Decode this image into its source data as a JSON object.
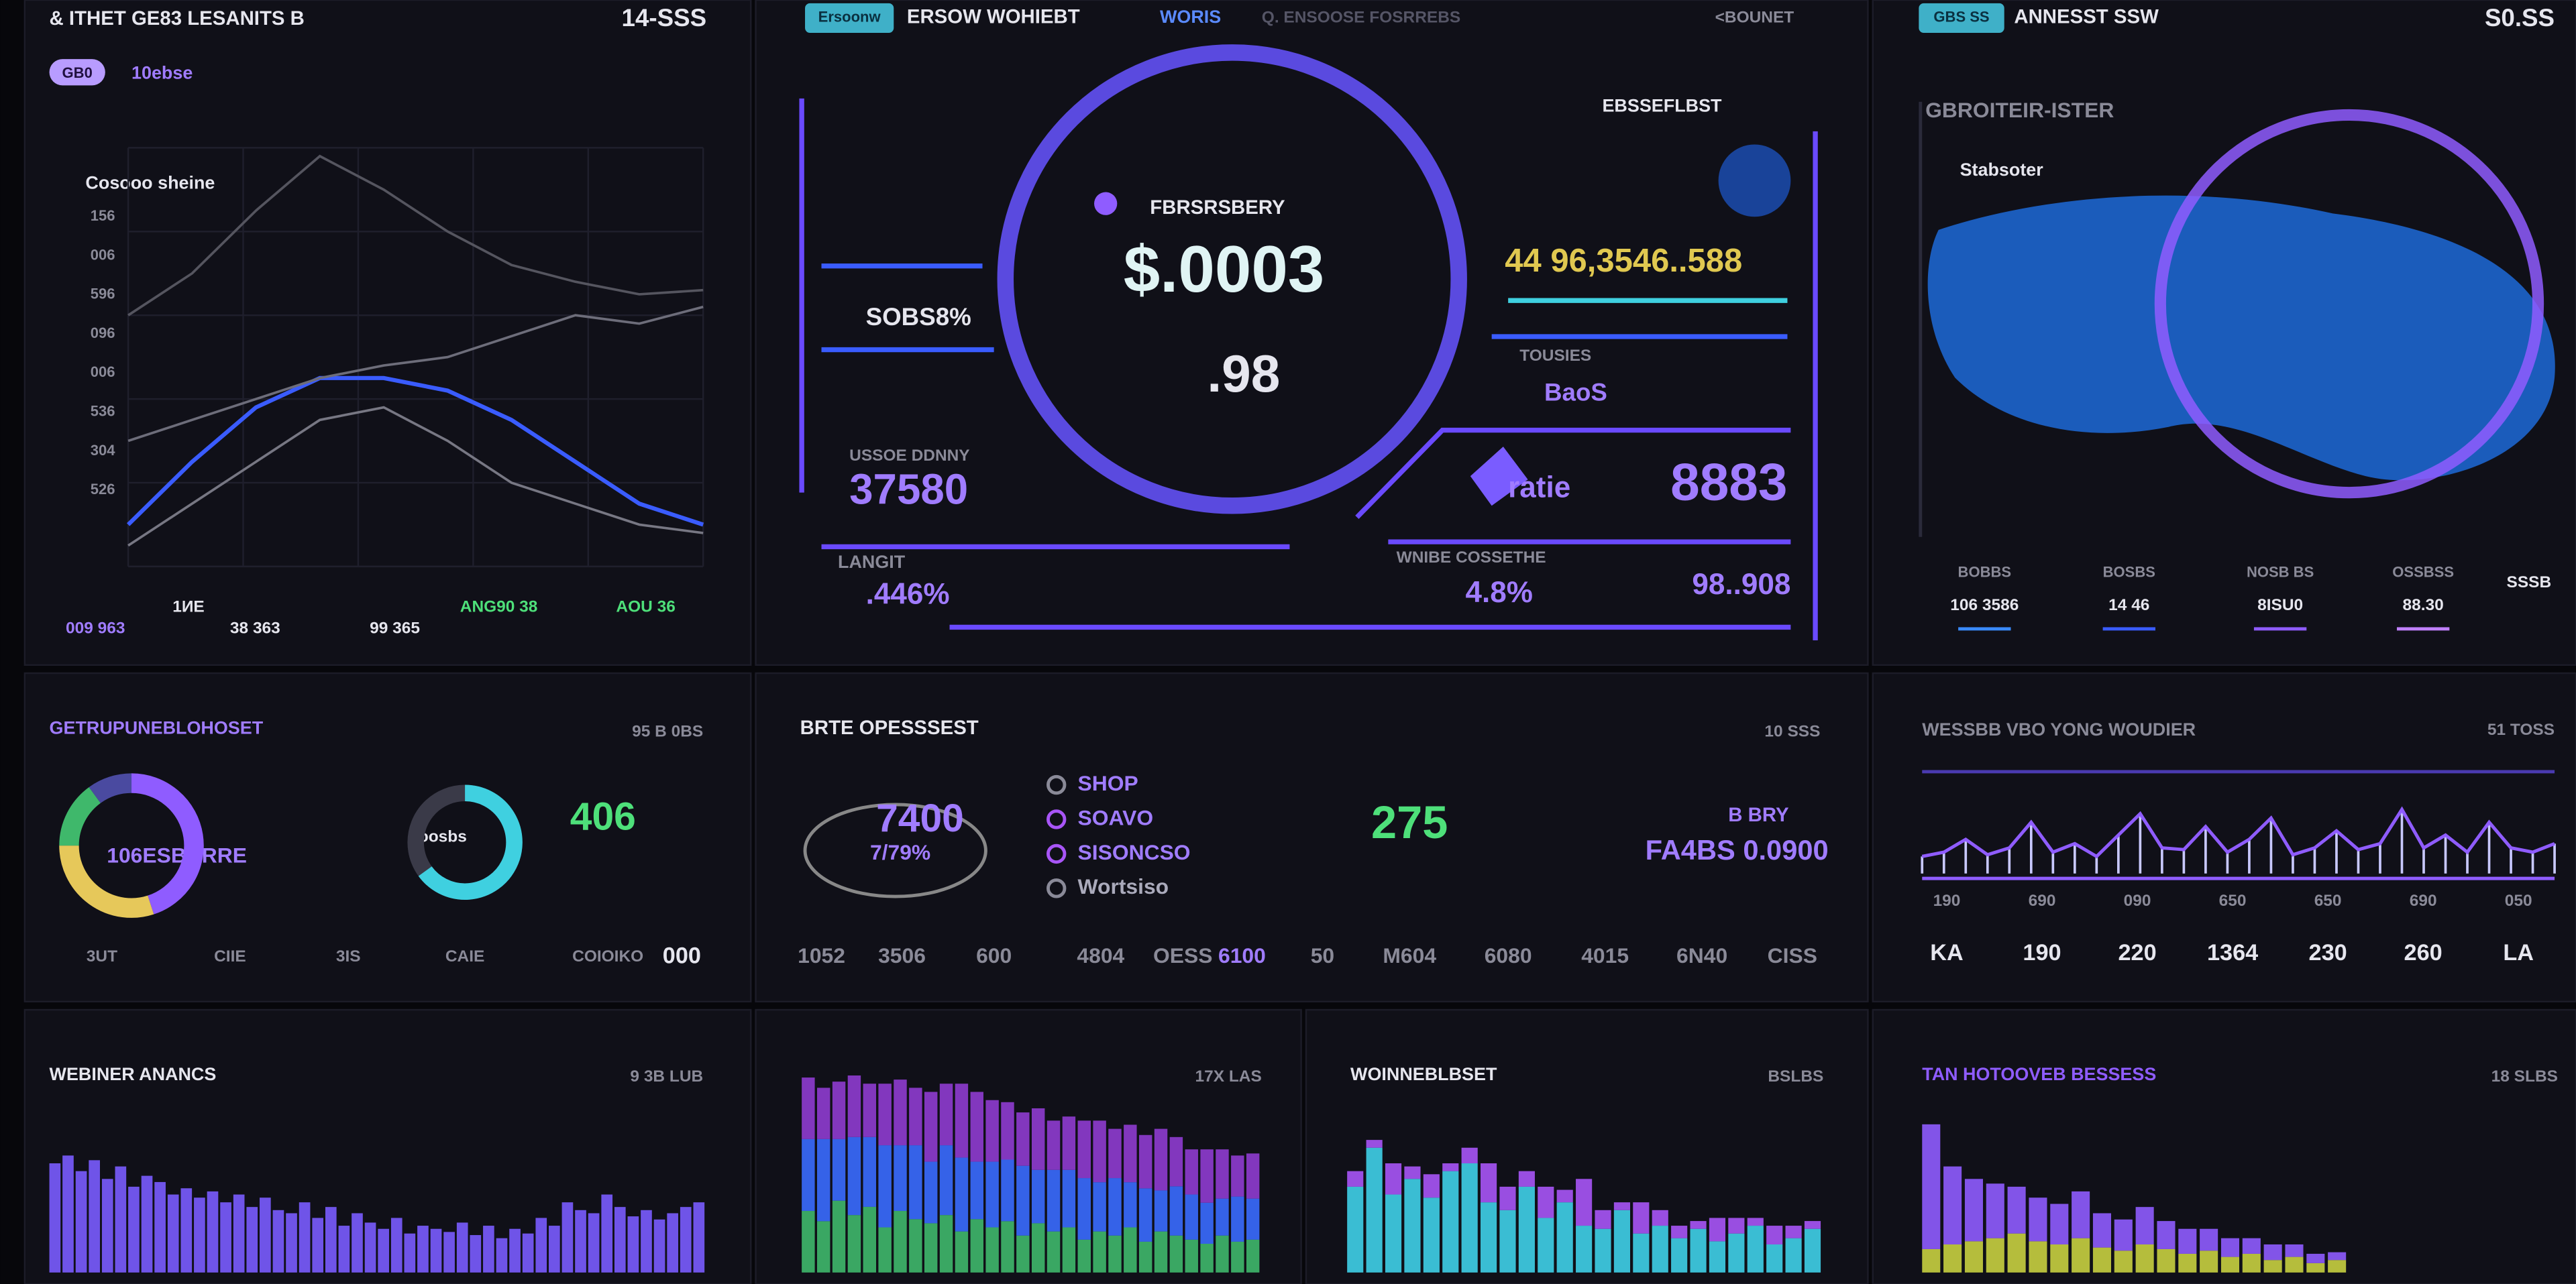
{
  "panel_a": {
    "title": "& ITHET GE83 LESANITS B",
    "time": "14-SSS",
    "pill": "GB0",
    "tag": "10ebse",
    "chart_label": "Cosooo sheine",
    "axis_labels": [
      "156",
      "006",
      "596",
      "096",
      "006",
      "536",
      "304",
      "526"
    ],
    "footer": [
      "009 963",
      "1ИE",
      "38 363",
      "99 365",
      "ANG90 38",
      "AOU 36"
    ]
  },
  "panel_b": {
    "pill": "Ersoonw",
    "title": "ERSOW WOHIEBT",
    "tab": "WORIS",
    "tab2": "Q. ENSOOSE FOSRREBS",
    "link": "<BOUNET",
    "gauge_label": "FBRSRSBERY",
    "gauge_value": "$.0003",
    "gauge_sub": ".98",
    "left_sub": "SOBS8%",
    "left_label": "USSOE DDNNY",
    "left_value": "37580",
    "left_label2": "LANGIT",
    "left_value2": ".446%",
    "right_title": "EBSSEFLBST",
    "right_value": "44 96,3546..588",
    "right_label": "TOUSIES",
    "right_sub": "BaoS",
    "icon_label": "ratie",
    "right_value2": "8883",
    "right_label2": "WNIBE COSSETHE",
    "right_value3": "4.8%",
    "right_value4": "98..908"
  },
  "panel_c": {
    "pill": "GBS SS",
    "title": "ANNESST SSW",
    "value": "S0.SS",
    "subtitle": "GBROITEIR-ISTER",
    "label": "Stabsoter",
    "stat_labels": [
      "BOBBS",
      "BOSBS",
      "NOSB BS",
      "OSSBSS"
    ],
    "stat_values": [
      "106 3586",
      "14 46",
      "8ISU0",
      "88.30"
    ],
    "side": "SSSB"
  },
  "panel_d": {
    "title": "GETRUPUNEBLOHOSET",
    "value": "95 B 0BS",
    "donut_label": "106ESBURRE",
    "gauge_label": "Ioosbs",
    "big_value": "406",
    "footer": [
      "3UT",
      "CIIE",
      "3IS",
      "CAIE",
      "COIOIKO",
      "000"
    ]
  },
  "panel_e": {
    "title": "BRTE OPESSSEST",
    "value": "10 SSS",
    "big_value": "7400",
    "sub_value": "7/79%",
    "legend": [
      "SHOP",
      "SOAVO",
      "SISONCSO",
      "Wortsiso"
    ],
    "mid_value": "275",
    "right_label": "B BRY",
    "right_value": "FA4BS 0.0900",
    "footer": [
      "1052",
      "3506",
      "600",
      "4804",
      "OESS",
      "6100",
      "50",
      "M604",
      "6080",
      "4015",
      "6N40",
      "CISS"
    ]
  },
  "panel_f": {
    "title": "WESSBB VBO YONG WOUDIER",
    "value": "51 TOSS",
    "ticks": [
      "190",
      "690",
      "090",
      "650",
      "650",
      "690",
      "050"
    ],
    "footer": [
      "KA",
      "190",
      "220",
      "1364",
      "230",
      "260",
      "LA"
    ]
  },
  "panel_g": {
    "title": "WEBINER ANANCS",
    "value": "9 3B LUB"
  },
  "panel_h": {
    "value": "17X LAS"
  },
  "panel_i": {
    "title": "WOINNEBLBSET",
    "value": "BSLBS"
  },
  "panel_j": {
    "title": "TAN HOTOOVEB BESSESS",
    "value": "18 SLBS"
  },
  "chart_data": [
    {
      "type": "line",
      "ylim": [
        0,
        100
      ],
      "series": [
        {
          "color": "#3a5cff",
          "values": [
            10,
            25,
            38,
            45,
            45,
            42,
            35,
            25,
            15,
            10
          ]
        },
        {
          "color": "#6d6d7a",
          "values": [
            30,
            35,
            40,
            45,
            48,
            50,
            55,
            60,
            58,
            62
          ]
        },
        {
          "color": "#55555f",
          "values": [
            60,
            70,
            85,
            98,
            90,
            80,
            72,
            68,
            65,
            66
          ]
        },
        {
          "color": "#777783",
          "values": [
            5,
            15,
            25,
            35,
            38,
            30,
            20,
            15,
            10,
            8
          ]
        }
      ]
    },
    {
      "type": "pie",
      "colors": [
        "#8f5cff",
        "#e6c85a",
        "#3fb86b",
        "#4a4aa0"
      ],
      "values": [
        45,
        30,
        15,
        10
      ]
    },
    {
      "type": "gauge",
      "color": "#3fd0e0",
      "ylim": [
        0,
        100
      ],
      "values": [
        65
      ]
    },
    {
      "type": "spark",
      "color": "#8f5cff",
      "ylim": [
        0,
        100
      ],
      "values": [
        20,
        25,
        40,
        22,
        30,
        60,
        25,
        35,
        20,
        45,
        70,
        30,
        28,
        55,
        25,
        40,
        65,
        22,
        30,
        50,
        28,
        35,
        75,
        30,
        45,
        25,
        60,
        30,
        25,
        35
      ]
    },
    {
      "type": "bar",
      "ylim": [
        0,
        100
      ],
      "series": [
        {
          "color": "#7a5cff",
          "values": [
            70,
            75,
            65,
            72,
            60,
            68,
            55,
            62,
            58,
            50,
            54,
            48,
            52,
            45,
            50,
            42,
            48,
            40,
            38,
            45,
            35,
            42,
            30,
            38,
            32,
            28,
            35,
            25,
            30,
            28,
            26,
            32,
            24,
            30,
            22,
            28,
            25,
            35,
            30,
            45,
            40,
            38,
            50,
            42,
            36,
            40,
            34,
            38,
            42,
            45
          ]
        }
      ]
    },
    {
      "type": "bar",
      "ylim": [
        0,
        100
      ],
      "series": [
        {
          "color": "#3fb86b",
          "values": [
            30,
            25,
            35,
            28,
            32,
            22,
            30,
            26,
            24,
            28,
            20,
            26,
            22,
            25,
            18,
            24,
            20,
            22,
            16,
            20,
            18,
            22,
            15,
            20,
            18,
            16,
            14,
            18,
            15,
            16
          ]
        },
        {
          "color": "#3a6cff",
          "values": [
            35,
            40,
            30,
            38,
            34,
            40,
            32,
            36,
            30,
            34,
            36,
            28,
            32,
            30,
            34,
            26,
            30,
            28,
            30,
            24,
            28,
            22,
            26,
            20,
            24,
            22,
            20,
            18,
            22,
            20
          ]
        },
        {
          "color": "#8f3cd0",
          "values": [
            30,
            25,
            28,
            30,
            26,
            30,
            32,
            28,
            34,
            30,
            36,
            34,
            30,
            28,
            26,
            30,
            24,
            26,
            28,
            30,
            24,
            28,
            26,
            30,
            24,
            22,
            26,
            24,
            20,
            22
          ]
        }
      ]
    },
    {
      "type": "bar",
      "ylim": [
        0,
        100
      ],
      "series": [
        {
          "color": "#3fd0e8",
          "values": [
            55,
            80,
            50,
            60,
            48,
            65,
            70,
            45,
            40,
            55,
            35,
            45,
            30,
            28,
            40,
            25,
            30,
            22,
            28,
            20,
            25,
            30,
            18,
            22,
            28
          ]
        },
        {
          "color": "#a855f7",
          "values": [
            10,
            5,
            20,
            8,
            15,
            5,
            10,
            25,
            15,
            10,
            20,
            8,
            30,
            12,
            5,
            20,
            10,
            8,
            5,
            15,
            10,
            5,
            12,
            8,
            5
          ]
        }
      ]
    },
    {
      "type": "bar",
      "ylim": [
        0,
        100
      ],
      "series": [
        {
          "color": "#c8d040",
          "values": [
            15,
            18,
            20,
            22,
            25,
            20,
            18,
            22,
            16,
            14,
            18,
            15,
            12,
            14,
            10,
            12,
            8,
            10,
            6,
            8
          ]
        },
        {
          "color": "#8f5cff",
          "values": [
            80,
            50,
            40,
            35,
            30,
            28,
            26,
            30,
            22,
            20,
            24,
            18,
            16,
            14,
            12,
            10,
            10,
            8,
            6,
            5
          ]
        }
      ]
    }
  ]
}
